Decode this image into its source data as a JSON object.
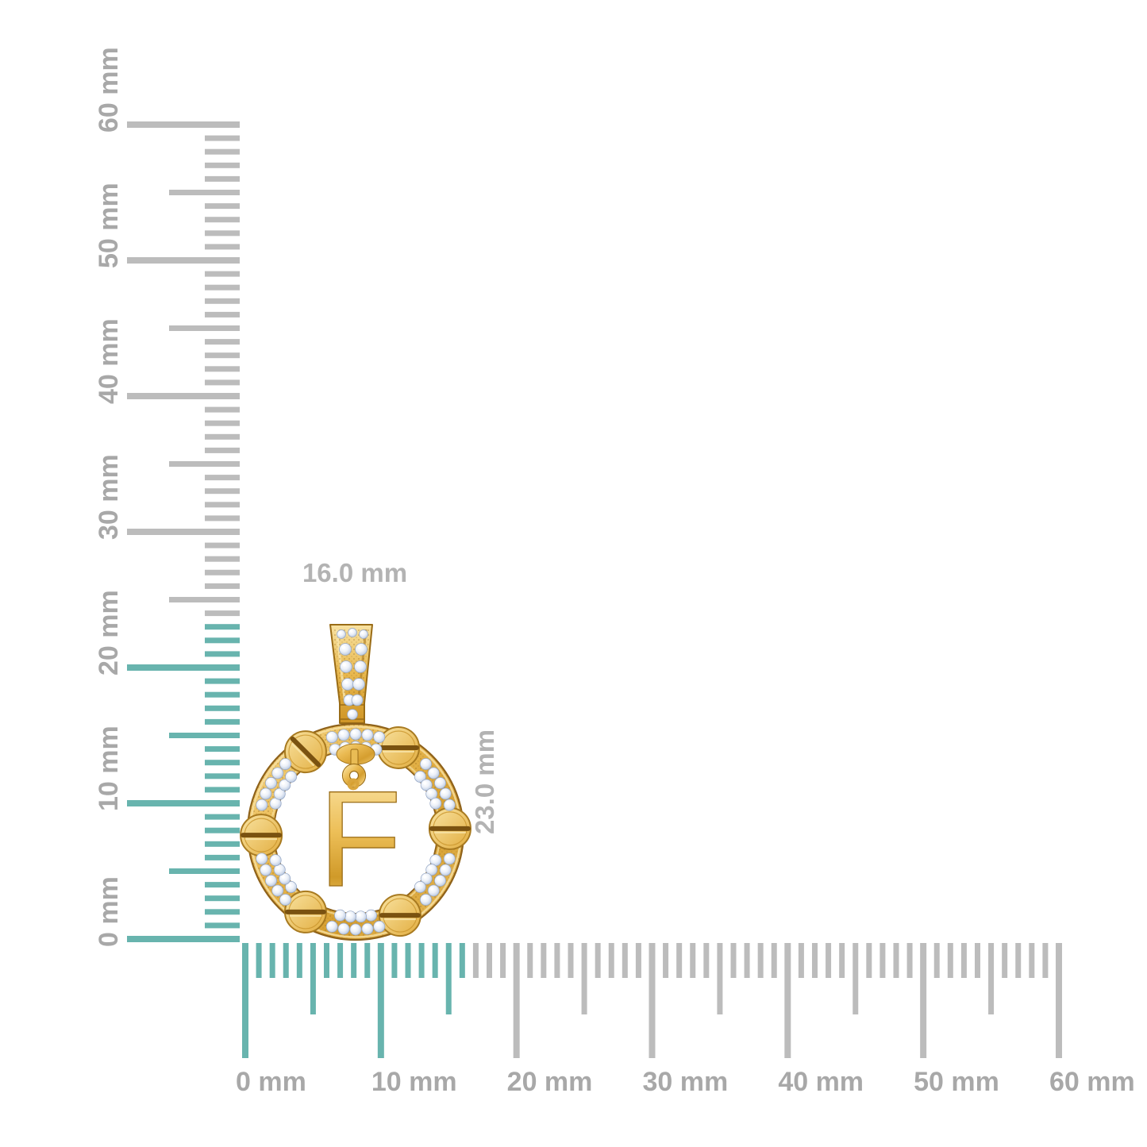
{
  "image_type": "jewelry product render with measurement rulers",
  "rulers": {
    "unit": "mm",
    "tick_color_inactive": "#bcbcbc",
    "tick_color_active": "#68b4ae",
    "label_color": "#a8a8a8",
    "vertical": {
      "min_mm": 0,
      "max_mm": 60,
      "label_step_mm": 10,
      "highlight_to_mm": 23,
      "labels": [
        "0 mm",
        "10 mm",
        "20 mm",
        "30 mm",
        "40 mm",
        "50 mm",
        "60 mm"
      ]
    },
    "horizontal": {
      "min_mm": 0,
      "max_mm": 60,
      "label_step_mm": 10,
      "highlight_to_mm": 16,
      "labels": [
        "0 mm",
        "10 mm",
        "20 mm",
        "30 mm",
        "40 mm",
        "50 mm",
        "60 mm"
      ]
    }
  },
  "dimensions": {
    "width_label": "16.0 mm",
    "height_label": "23.0 mm",
    "label_color": "#b3b3b3"
  },
  "pendant": {
    "letter": "F",
    "style": "circle screw-motif pave pendant with hanging initial",
    "gold_color": "#e9bc55",
    "gold_dark": "#9a6c16",
    "diamond_color": "#dde6f4",
    "screw_count": 6
  }
}
